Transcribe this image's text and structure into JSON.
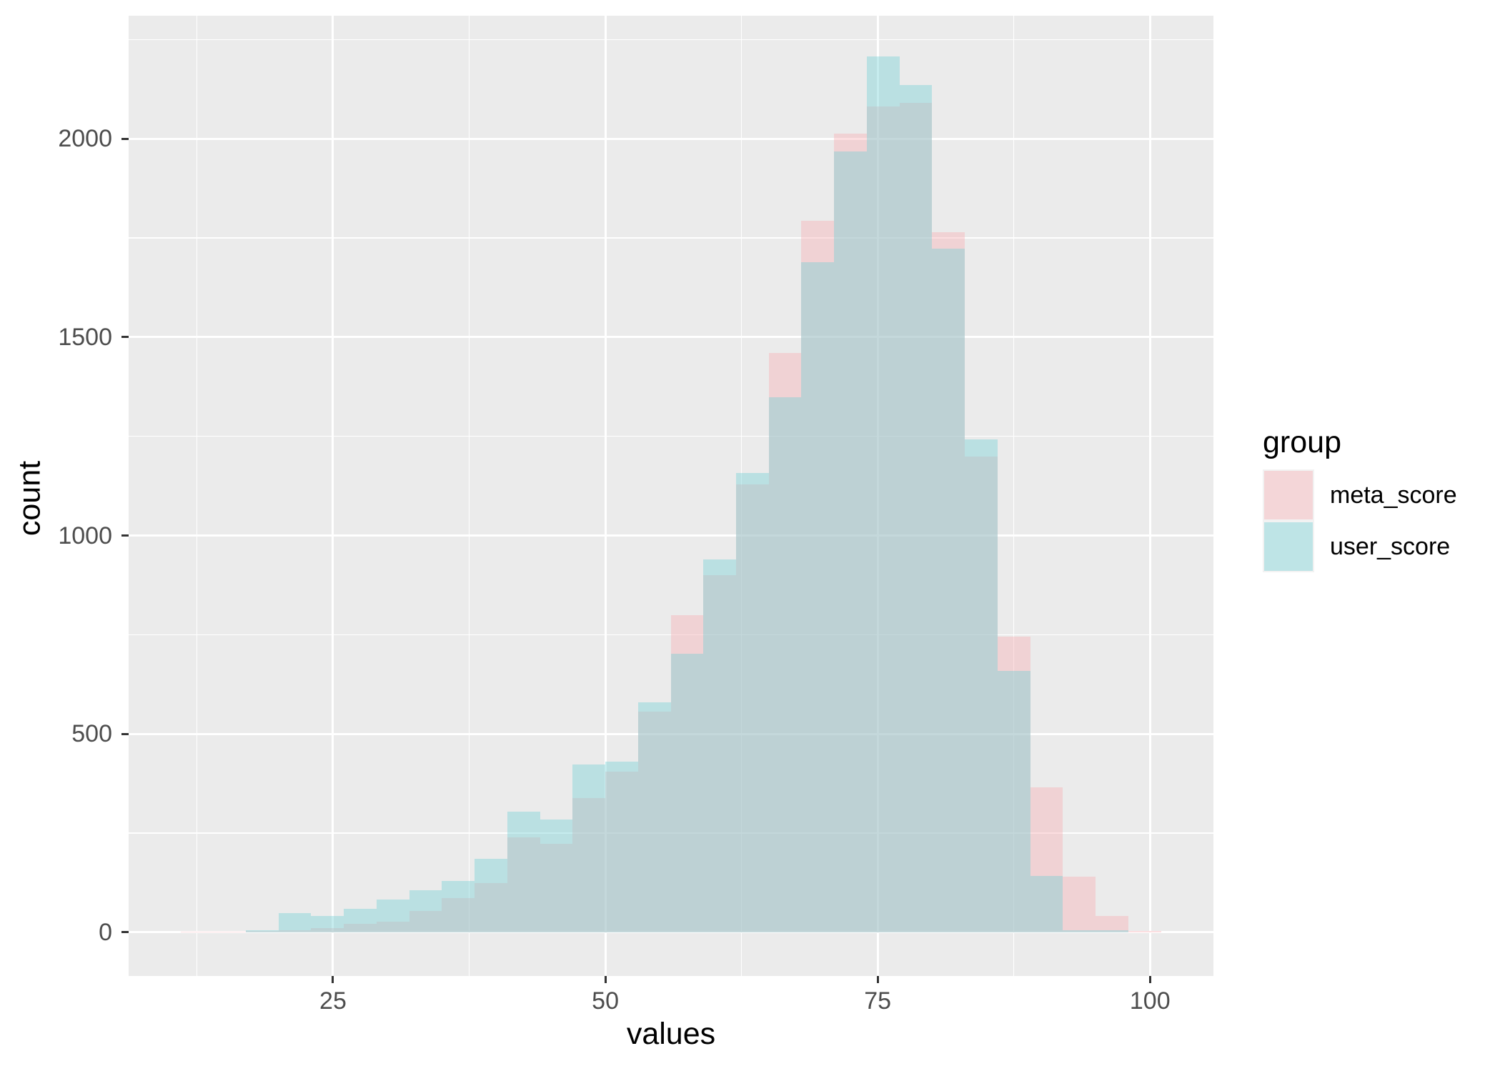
{
  "chart_data": {
    "type": "histogram",
    "title": "",
    "xlabel": "values",
    "ylabel": "count",
    "legend_title": "group",
    "legend_position": "right",
    "grid": true,
    "panel_bg_color": "#EBEBEB",
    "gridline_color": "#FFFFFF",
    "tick_label_color": "#4D4D4D",
    "xlim": [
      6.24,
      105.82
    ],
    "ylim": [
      -110,
      2310
    ],
    "x_ticks": [
      25,
      50,
      75,
      100
    ],
    "y_ticks": [
      0,
      500,
      1000,
      1500,
      2000
    ],
    "x_minor_ticks": [
      12.5,
      37.5,
      62.5,
      87.5
    ],
    "y_minor_ticks": [
      250,
      750,
      1250,
      1750,
      2250
    ],
    "binwidth": 3,
    "series": [
      {
        "name": "meta_score",
        "fill_rgba": "rgba(248,173,178,0.4)",
        "base_hex": "#F8ADB2"
      },
      {
        "name": "user_score",
        "fill_rgba": "rgba(113,208,213,0.4)",
        "base_hex": "#71D0D5"
      }
    ],
    "bins": [
      {
        "x0": 11,
        "x1": 14,
        "meta_score": 2,
        "user_score": 0
      },
      {
        "x0": 14,
        "x1": 17,
        "meta_score": 2,
        "user_score": 0
      },
      {
        "x0": 17,
        "x1": 20,
        "meta_score": 3,
        "user_score": 6
      },
      {
        "x0": 20,
        "x1": 23,
        "meta_score": 5,
        "user_score": 48
      },
      {
        "x0": 23,
        "x1": 26,
        "meta_score": 11,
        "user_score": 41
      },
      {
        "x0": 26,
        "x1": 29,
        "meta_score": 21,
        "user_score": 60
      },
      {
        "x0": 29,
        "x1": 32,
        "meta_score": 27,
        "user_score": 83
      },
      {
        "x0": 32,
        "x1": 35,
        "meta_score": 53,
        "user_score": 106
      },
      {
        "x0": 35,
        "x1": 38,
        "meta_score": 87,
        "user_score": 129
      },
      {
        "x0": 38,
        "x1": 41,
        "meta_score": 124,
        "user_score": 186
      },
      {
        "x0": 41,
        "x1": 44,
        "meta_score": 239,
        "user_score": 305
      },
      {
        "x0": 44,
        "x1": 47,
        "meta_score": 224,
        "user_score": 285
      },
      {
        "x0": 47,
        "x1": 50,
        "meta_score": 338,
        "user_score": 423
      },
      {
        "x0": 50,
        "x1": 53,
        "meta_score": 405,
        "user_score": 430
      },
      {
        "x0": 53,
        "x1": 56,
        "meta_score": 556,
        "user_score": 579
      },
      {
        "x0": 56,
        "x1": 59,
        "meta_score": 800,
        "user_score": 702
      },
      {
        "x0": 59,
        "x1": 62,
        "meta_score": 900,
        "user_score": 940
      },
      {
        "x0": 62,
        "x1": 65,
        "meta_score": 1128,
        "user_score": 1157
      },
      {
        "x0": 65,
        "x1": 68,
        "meta_score": 1460,
        "user_score": 1348
      },
      {
        "x0": 68,
        "x1": 71,
        "meta_score": 1793,
        "user_score": 1688
      },
      {
        "x0": 71,
        "x1": 74,
        "meta_score": 2013,
        "user_score": 1968
      },
      {
        "x0": 74,
        "x1": 77,
        "meta_score": 2081,
        "user_score": 2207
      },
      {
        "x0": 77,
        "x1": 80,
        "meta_score": 2090,
        "user_score": 2136
      },
      {
        "x0": 80,
        "x1": 83,
        "meta_score": 1764,
        "user_score": 1723
      },
      {
        "x0": 83,
        "x1": 86,
        "meta_score": 1199,
        "user_score": 1242
      },
      {
        "x0": 86,
        "x1": 89,
        "meta_score": 745,
        "user_score": 659
      },
      {
        "x0": 89,
        "x1": 92,
        "meta_score": 365,
        "user_score": 142
      },
      {
        "x0": 92,
        "x1": 95,
        "meta_score": 141,
        "user_score": 6
      },
      {
        "x0": 95,
        "x1": 98,
        "meta_score": 42,
        "user_score": 6
      },
      {
        "x0": 98,
        "x1": 101,
        "meta_score": 3,
        "user_score": 0
      }
    ]
  }
}
